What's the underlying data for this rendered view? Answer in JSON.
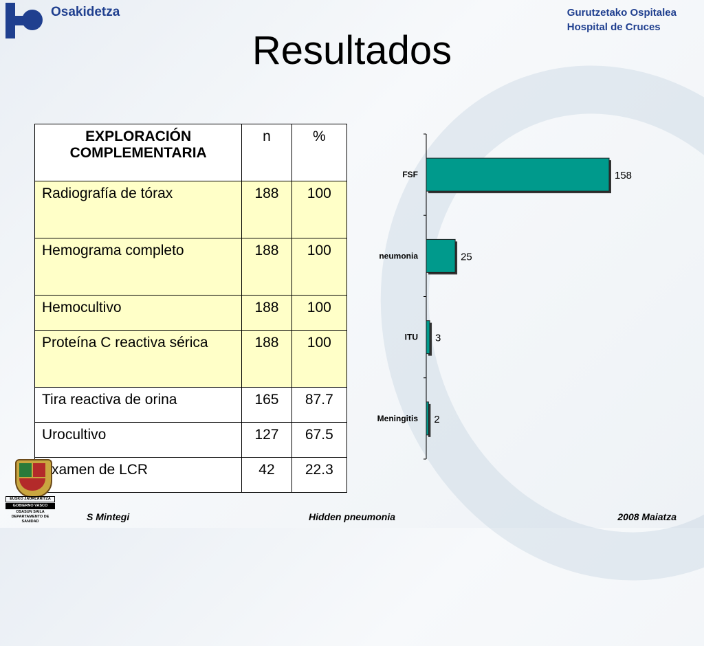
{
  "header": {
    "logo_text": "Osakidetza",
    "hospital_line1": "Gurutzetako Ospitalea",
    "hospital_line2": "Hospital de Cruces"
  },
  "title": "Resultados",
  "table": {
    "headers": [
      "EXPLORACIÓN COMPLEMENTARIA",
      "n",
      "%"
    ],
    "rows": [
      {
        "label": "Radiografía de tórax",
        "n": "188",
        "pct": "100"
      },
      {
        "label": "Hemograma completo",
        "n": "188",
        "pct": "100"
      },
      {
        "label": "Hemocultivo",
        "n": "188",
        "pct": "100"
      },
      {
        "label": "Proteína C reactiva sérica",
        "n": "188",
        "pct": "100"
      },
      {
        "label": "Tira reactiva de orina",
        "n": "165",
        "pct": "87.7"
      },
      {
        "label": "Urocultivo",
        "n": "127",
        "pct": "67.5"
      },
      {
        "label": "Examen de LCR",
        "n": "42",
        "pct": "22.3"
      }
    ]
  },
  "chart_data": {
    "type": "bar",
    "orientation": "horizontal",
    "categories": [
      "FSF",
      "neumonia",
      "ITU",
      "Meningitis"
    ],
    "values": [
      158,
      25,
      3,
      2
    ],
    "title": "",
    "xlabel": "",
    "ylabel": "",
    "xlim": [
      0,
      158
    ],
    "grid": false,
    "color": "#009a8c"
  },
  "seal": {
    "line1": "EUSKO JAURLARITZA",
    "line2": "GOBIERNO VASCO",
    "line3": "OSASUN SAILA",
    "line4": "DEPARTAMENTO DE SANIDAD"
  },
  "footer": {
    "left": "S Mintegi",
    "center": "Hidden pneumonia",
    "right": "2008 Maiatza"
  }
}
